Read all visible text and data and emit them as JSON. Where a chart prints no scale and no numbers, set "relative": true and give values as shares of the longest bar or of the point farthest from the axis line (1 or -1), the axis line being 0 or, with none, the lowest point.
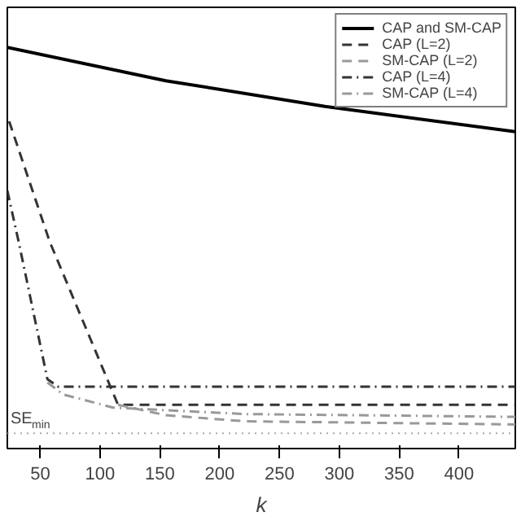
{
  "chart_data": {
    "type": "line",
    "relative": true,
    "xlabel": "k",
    "xlim": [
      22.5,
      447
    ],
    "xticks": [
      50,
      100,
      150,
      200,
      250,
      300,
      350,
      400
    ],
    "legend": "top right",
    "grid": false,
    "series": [
      {
        "name": "CAP and SM-CAP",
        "color": "#000000",
        "line_style": "solid",
        "x": [
          22.5,
          155,
          288,
          447
        ],
        "values": [
          1.0,
          0.917,
          0.853,
          0.79
        ]
      },
      {
        "name": "CAP (L=2)",
        "color": "#333333",
        "line_style": "dashed",
        "x": [
          24,
          58,
          115,
          447
        ],
        "values": [
          0.816,
          0.515,
          0.109,
          0.109
        ]
      },
      {
        "name": "SM-CAP (L=2)",
        "color": "#999999",
        "line_style": "dashed",
        "x": [
          115,
          155,
          221,
          447
        ],
        "values": [
          0.109,
          0.083,
          0.068,
          0.06
        ]
      },
      {
        "name": "CAP (L=4)",
        "color": "#333333",
        "line_style": "dashdot",
        "x": [
          22.5,
          32,
          56,
          65,
          447
        ],
        "values": [
          0.643,
          0.515,
          0.173,
          0.154,
          0.154
        ]
      },
      {
        "name": "SM-CAP (L=4)",
        "color": "#999999",
        "line_style": "dashdot",
        "x": [
          56,
          69,
          111,
          221,
          447
        ],
        "values": [
          0.165,
          0.135,
          0.102,
          0.086,
          0.079
        ]
      }
    ],
    "ref_lines": [
      {
        "axis": "y",
        "value": 0.038,
        "label": "SE$_{min}$",
        "color": "#aaaaaa",
        "line_style": "dotted"
      }
    ]
  }
}
